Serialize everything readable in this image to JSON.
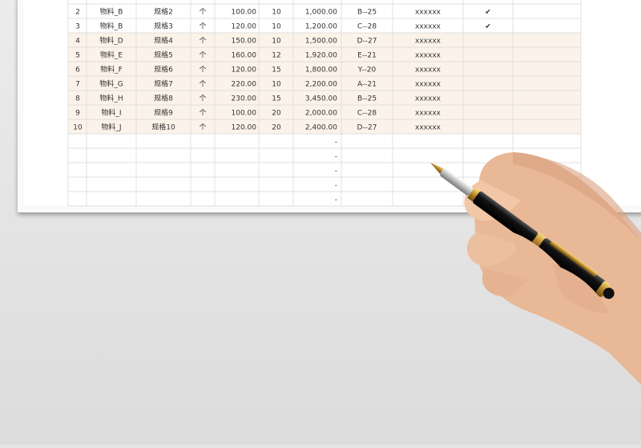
{
  "table": {
    "rows": [
      {
        "no": "2",
        "material": "物料_B",
        "spec": "规格2",
        "unit": "个",
        "price": "100.00",
        "qty": "10",
        "amount": "1,000.00",
        "location": "B--25",
        "note": "xxxxxx",
        "check": "✔"
      },
      {
        "no": "3",
        "material": "物料_B",
        "spec": "规格3",
        "unit": "个",
        "price": "120.00",
        "qty": "10",
        "amount": "1,200.00",
        "location": "C--28",
        "note": "xxxxxx",
        "check": "✔"
      },
      {
        "no": "4",
        "material": "物料_D",
        "spec": "规格4",
        "unit": "个",
        "price": "150.00",
        "qty": "10",
        "amount": "1,500.00",
        "location": "D--27",
        "note": "xxxxxx"
      },
      {
        "no": "5",
        "material": "物料_E",
        "spec": "规格5",
        "unit": "个",
        "price": "160.00",
        "qty": "12",
        "amount": "1,920.00",
        "location": "E--21",
        "note": "xxxxxx"
      },
      {
        "no": "6",
        "material": "物料_F",
        "spec": "规格6",
        "unit": "个",
        "price": "120.00",
        "qty": "15",
        "amount": "1,800.00",
        "location": "Y--20",
        "note": "xxxxxx"
      },
      {
        "no": "7",
        "material": "物料_G",
        "spec": "规格7",
        "unit": "个",
        "price": "220.00",
        "qty": "10",
        "amount": "2,200.00",
        "location": "A--21",
        "note": "xxxxxx"
      },
      {
        "no": "8",
        "material": "物料_H",
        "spec": "规格8",
        "unit": "个",
        "price": "230.00",
        "qty": "15",
        "amount": "3,450.00",
        "location": "B--25",
        "note": "xxxxxx"
      },
      {
        "no": "9",
        "material": "物料_I",
        "spec": "规格9",
        "unit": "个",
        "price": "100.00",
        "qty": "20",
        "amount": "2,000.00",
        "location": "C--28",
        "note": "xxxxxx"
      },
      {
        "no": "10",
        "material": "物料_J",
        "spec": "规格10",
        "unit": "个",
        "price": "120.00",
        "qty": "20",
        "amount": "2,400.00",
        "location": "D--27",
        "note": "xxxxxx"
      },
      {
        "amount": "-"
      },
      {
        "amount": "-"
      },
      {
        "amount": "-"
      },
      {
        "amount": "-"
      },
      {
        "amount": "-"
      }
    ]
  }
}
